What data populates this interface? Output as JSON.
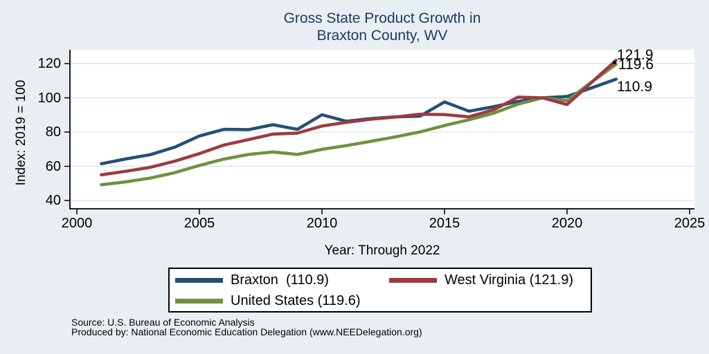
{
  "title": {
    "line1": "Gross State Product Growth in",
    "line2": "Braxton County, WV"
  },
  "colors": {
    "background": "#e9eef3",
    "plot_background": "#ffffff",
    "title_text": "#1f3a60",
    "axis_text": "#000000",
    "gridline": "#dde7ee",
    "braxton": "#234f77",
    "west_virginia": "#9e3a40",
    "united_states": "#70903f"
  },
  "y_axis": {
    "label": "Index: 2019 = 100",
    "ticks": [
      40,
      60,
      80,
      100,
      120
    ]
  },
  "x_axis": {
    "label": "Year: Through 2022",
    "ticks": [
      2000,
      2005,
      2010,
      2015,
      2020,
      2025
    ]
  },
  "end_labels": {
    "west_virginia": "121.9",
    "united_states": "119.6",
    "braxton": "110.9"
  },
  "legend": {
    "items": [
      {
        "label": "Braxton  (110.9)",
        "series": "Braxton"
      },
      {
        "label": "West Virginia (121.9)",
        "series": "West Virginia"
      },
      {
        "label": "United States (119.6)",
        "series": "United States"
      }
    ]
  },
  "footer": {
    "line1": "Source: U.S. Bureau of Economic Analysis",
    "line2": "Produced by: National Economic Education Delegation (www.NEEDelegation.org)"
  },
  "chart_data": {
    "type": "line",
    "title": "Gross State Product Growth in Braxton County, WV",
    "xlabel": "Year: Through 2022",
    "ylabel": "Index: 2019 = 100",
    "xlim": [
      2000,
      2025
    ],
    "ylim": [
      35,
      128
    ],
    "grid": "horizontal",
    "legend_position": "bottom",
    "x": [
      2001,
      2002,
      2003,
      2004,
      2005,
      2006,
      2007,
      2008,
      2009,
      2010,
      2011,
      2012,
      2013,
      2014,
      2015,
      2016,
      2017,
      2018,
      2019,
      2020,
      2021,
      2022
    ],
    "series": [
      {
        "name": "Braxton",
        "final_value": 110.9,
        "color": "#234f77",
        "values": [
          61.5,
          64.3,
          66.8,
          71.2,
          77.7,
          81.6,
          81.4,
          84.3,
          81.6,
          90.1,
          86.3,
          87.9,
          88.9,
          89.3,
          97.6,
          92.2,
          94.8,
          97.9,
          100.0,
          100.8,
          105.8,
          110.9
        ]
      },
      {
        "name": "West Virginia",
        "final_value": 121.9,
        "color": "#9e3a40",
        "values": [
          55.0,
          57.1,
          59.4,
          63.0,
          67.4,
          72.4,
          75.6,
          78.8,
          79.4,
          83.5,
          85.7,
          87.5,
          88.8,
          90.4,
          90.2,
          88.9,
          93.0,
          100.4,
          100.0,
          96.1,
          109.0,
          121.9
        ]
      },
      {
        "name": "United States",
        "final_value": 119.6,
        "color": "#70903f",
        "values": [
          49.2,
          50.9,
          53.1,
          56.3,
          60.5,
          64.2,
          66.9,
          68.4,
          66.9,
          69.9,
          72.1,
          74.6,
          77.2,
          80.1,
          83.8,
          87.2,
          91.0,
          96.3,
          100.0,
          98.4,
          109.2,
          119.6
        ]
      }
    ]
  }
}
